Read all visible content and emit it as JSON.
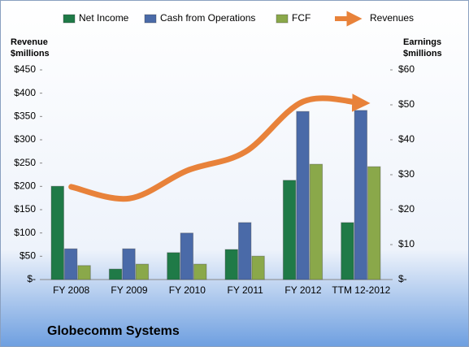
{
  "chart_data": {
    "type": "bar-line",
    "title": "Globecomm Systems",
    "y_label": [
      "Revenue",
      "$millions"
    ],
    "y2_label": [
      "Earnings",
      "$millions"
    ],
    "categories": [
      "FY 2008",
      "FY 2009",
      "FY 2010",
      "FY 2011",
      "FY 2012",
      "TTM 12-2012"
    ],
    "series": [
      {
        "name": "Net Income",
        "color": "#1f7a47",
        "type": "bar",
        "axis": "y2",
        "values": [
          26.7,
          3.0,
          7.7,
          8.6,
          28.4,
          16.3
        ]
      },
      {
        "name": "Cash from Operations",
        "color": "#4a6aa8",
        "type": "bar",
        "axis": "y2",
        "values": [
          8.8,
          8.8,
          13.3,
          16.3,
          48.1,
          48.4
        ]
      },
      {
        "name": "FCF",
        "color": "#8aa84a",
        "type": "bar",
        "axis": "y2",
        "values": [
          4.0,
          4.4,
          4.4,
          6.7,
          33.0,
          32.3
        ]
      },
      {
        "name": "Revenues",
        "color": "#e8823a",
        "type": "line",
        "axis": "y",
        "values": [
          199,
          174,
          234,
          274,
          382,
          379
        ]
      }
    ],
    "ylim": [
      0,
      450
    ],
    "yticks": [
      {
        "value": 0,
        "label": "$-"
      },
      {
        "value": 50,
        "label": "$50"
      },
      {
        "value": 100,
        "label": "$100"
      },
      {
        "value": 150,
        "label": "$150"
      },
      {
        "value": 200,
        "label": "$200"
      },
      {
        "value": 250,
        "label": "$250"
      },
      {
        "value": 300,
        "label": "$300"
      },
      {
        "value": 350,
        "label": "$350"
      },
      {
        "value": 400,
        "label": "$400"
      },
      {
        "value": 450,
        "label": "$450"
      }
    ],
    "y2lim": [
      0,
      60
    ],
    "y2ticks": [
      {
        "value": 0,
        "label": "$-"
      },
      {
        "value": 10,
        "label": "$10"
      },
      {
        "value": 20,
        "label": "$20"
      },
      {
        "value": 30,
        "label": "$30"
      },
      {
        "value": 40,
        "label": "$40"
      },
      {
        "value": 50,
        "label": "$50"
      },
      {
        "value": 60,
        "label": "$60"
      }
    ]
  }
}
